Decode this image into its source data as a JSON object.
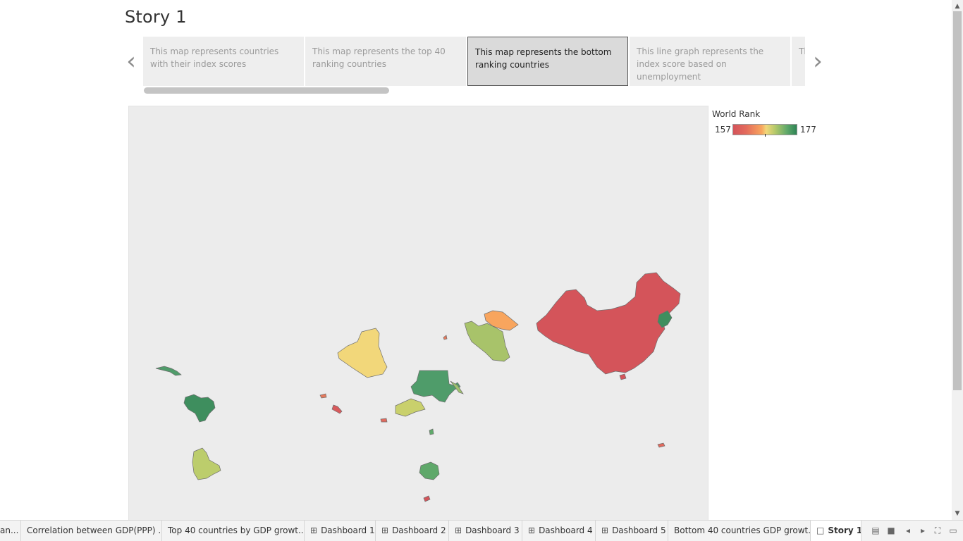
{
  "story": {
    "title": "Story 1"
  },
  "story_points": [
    {
      "caption": "This map represents countries with their index scores"
    },
    {
      "caption": "This map represents the top 40 ranking countries"
    },
    {
      "caption": "This map represents the bottom ranking countries"
    },
    {
      "caption": "This line graph represents the index score based on unemployment"
    },
    {
      "caption": "Th ba"
    }
  ],
  "legend": {
    "title": "World Rank",
    "min": "157",
    "max": "177"
  },
  "colors": {
    "scale_low": "#d4545a",
    "scale_mid": "#f2d77a",
    "scale_high": "#2e8455",
    "map_background": "#ececec"
  },
  "tabs": [
    {
      "label": "an...",
      "icon": ""
    },
    {
      "label": "Correlation between GDP(PPP) ...",
      "icon": ""
    },
    {
      "label": "Top 40 countries by GDP growt...",
      "icon": ""
    },
    {
      "label": "Dashboard 1",
      "icon": "dashboard-icon"
    },
    {
      "label": "Dashboard 2",
      "icon": "dashboard-icon"
    },
    {
      "label": "Dashboard 3",
      "icon": "dashboard-icon"
    },
    {
      "label": "Dashboard 4",
      "icon": "dashboard-icon"
    },
    {
      "label": "Dashboard 5",
      "icon": "dashboard-icon"
    },
    {
      "label": "Bottom 40 countries GDP growt...",
      "icon": ""
    },
    {
      "label": "Story 1",
      "icon": "story-icon"
    }
  ],
  "icons": {
    "prev": "chevron-left-icon",
    "next": "chevron-right-icon",
    "sheet_sorter": "sheet-sorter-icon",
    "filmstrip": "filmstrip-icon",
    "tab_prev": "tab-prev-icon",
    "tab_next": "tab-next-icon",
    "fullscreen": "fullscreen-icon",
    "presentation": "presentation-icon"
  }
}
